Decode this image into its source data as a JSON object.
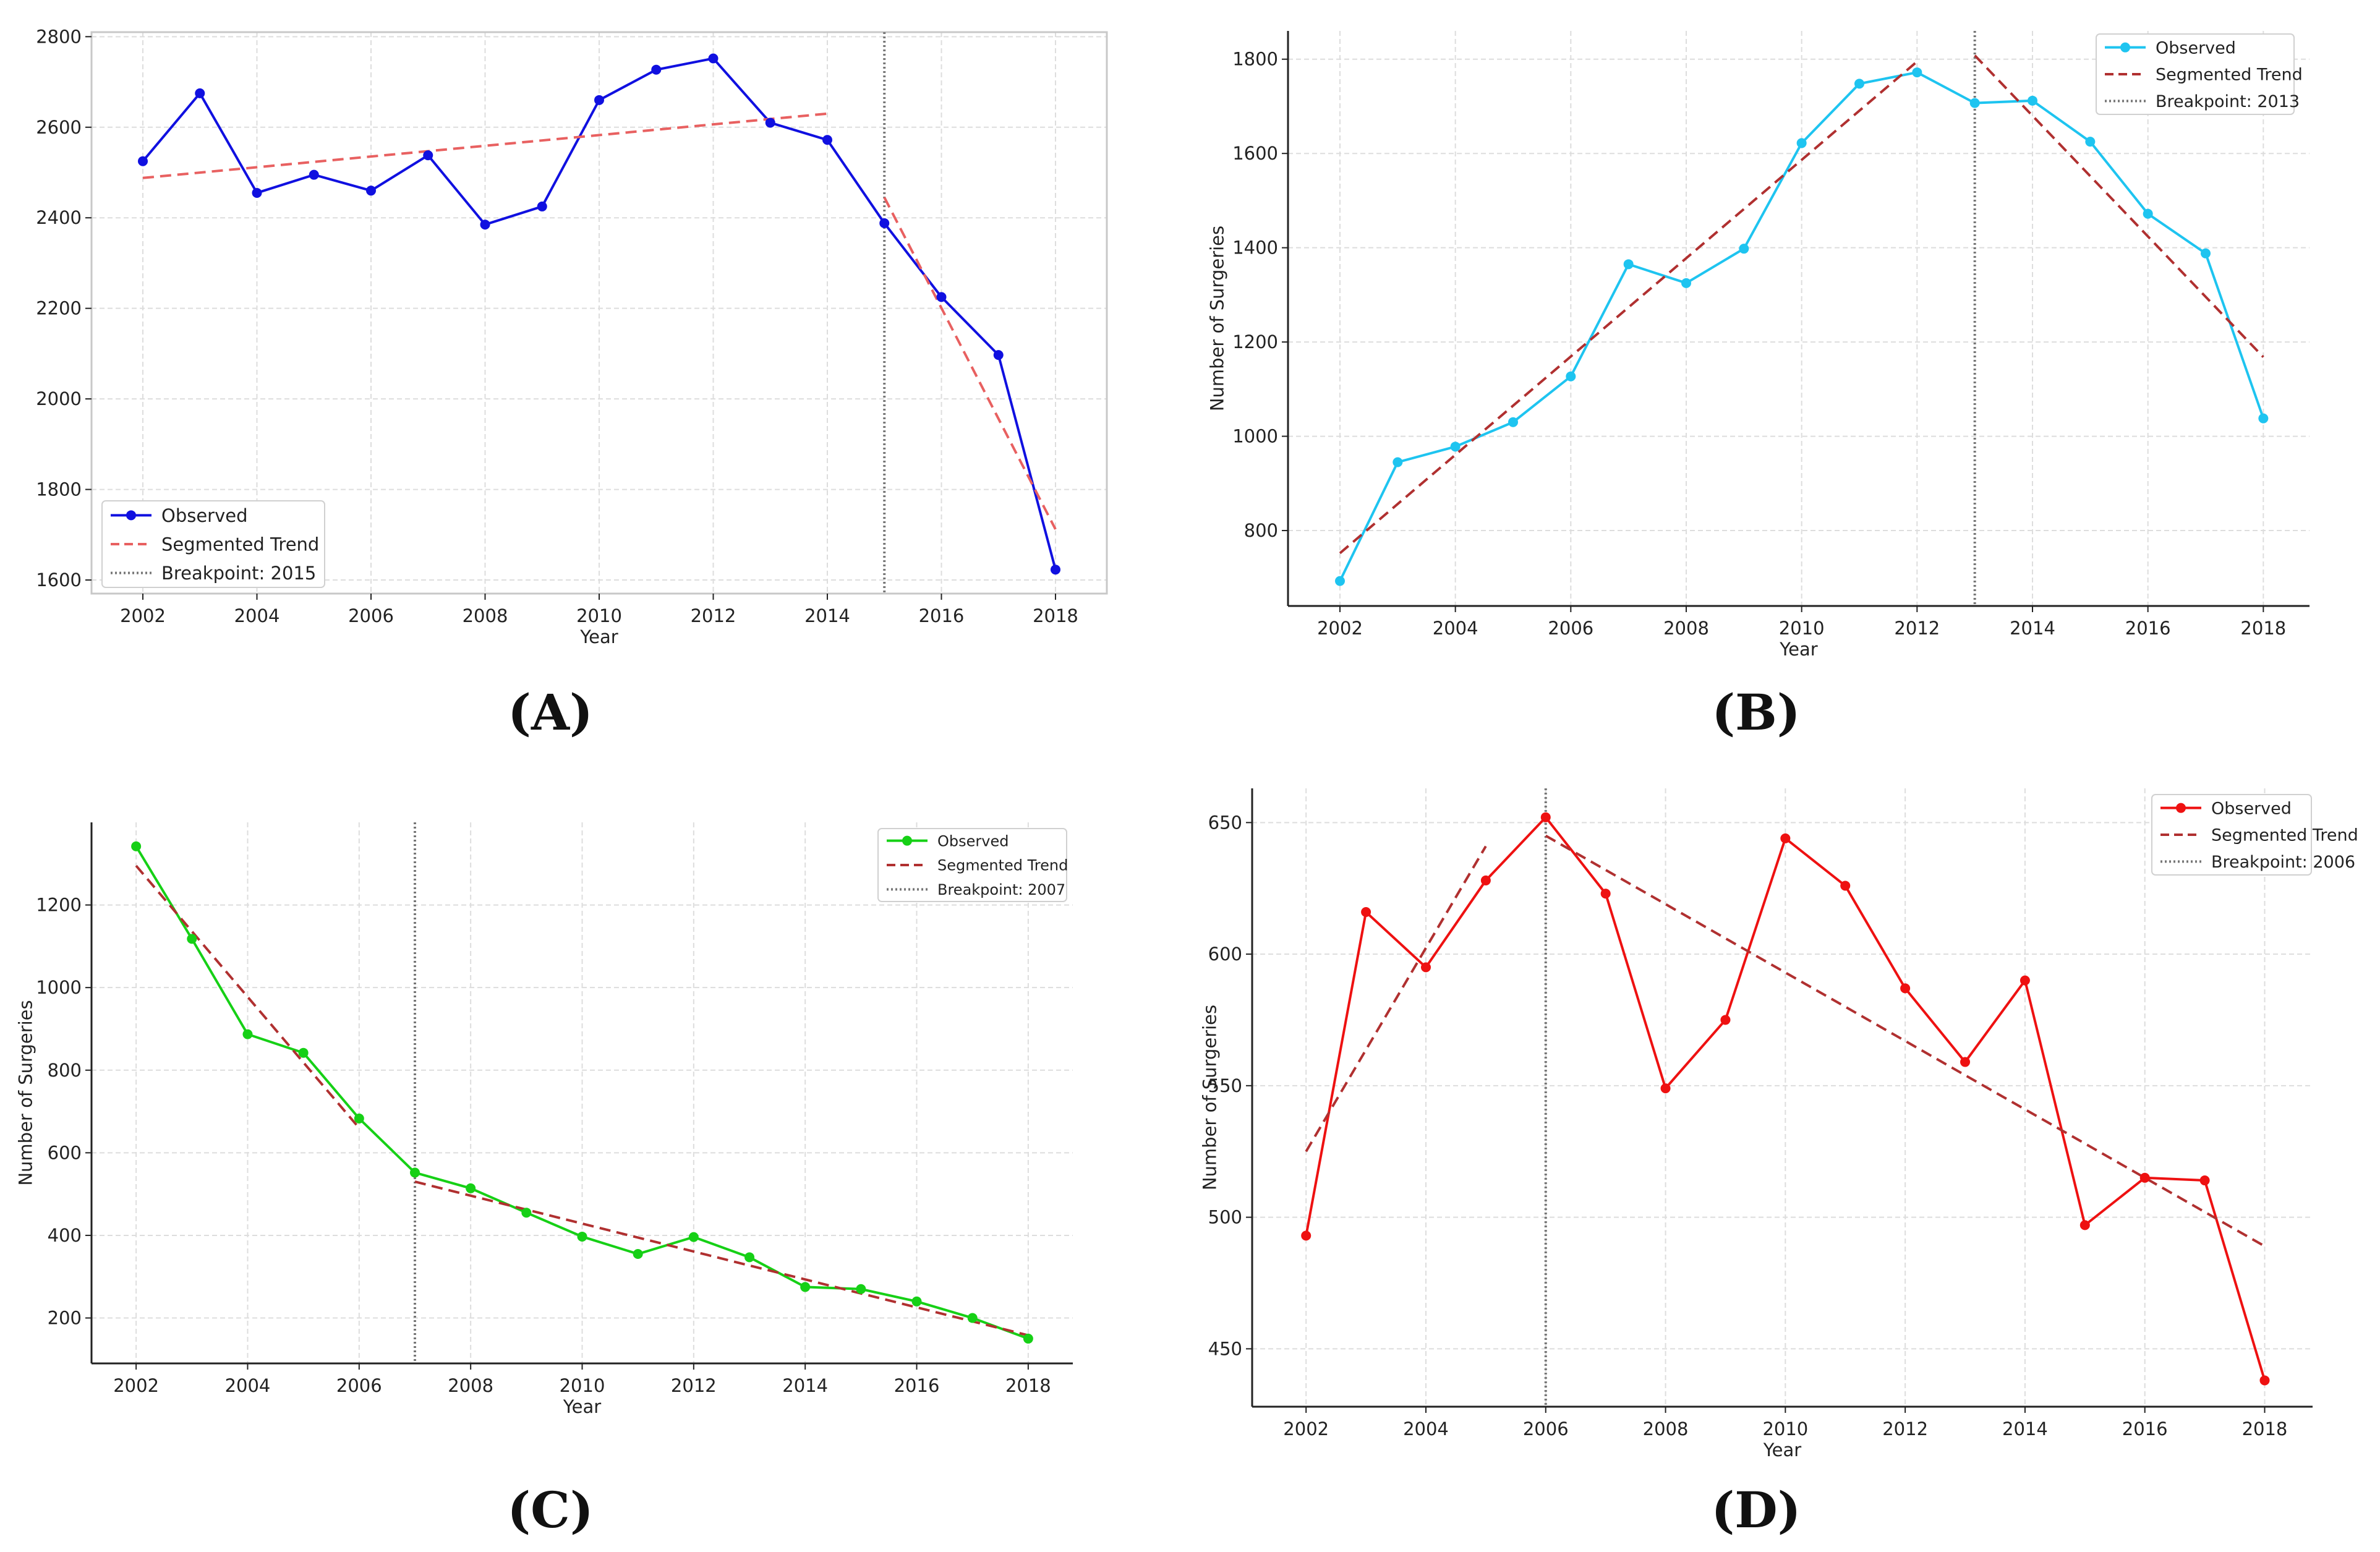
{
  "chart_data": [
    {
      "panel": "(A)",
      "type": "line",
      "color": "#1010e0",
      "trend_color": "#e86060",
      "xlabel": "Year",
      "ylabel": "",
      "xlim": [
        2001.1,
        2018.9
      ],
      "ylim": [
        1570,
        2810
      ],
      "xticks": [
        2002,
        2004,
        2006,
        2008,
        2010,
        2012,
        2014,
        2016,
        2018
      ],
      "yticks": [
        1600,
        1800,
        2000,
        2200,
        2400,
        2600,
        2800
      ],
      "x": [
        2002,
        2003,
        2004,
        2005,
        2006,
        2007,
        2008,
        2009,
        2010,
        2011,
        2012,
        2013,
        2014,
        2015,
        2016,
        2017,
        2018
      ],
      "values": [
        2525,
        2675,
        2455,
        2495,
        2460,
        2538,
        2385,
        2425,
        2660,
        2727,
        2752,
        2610,
        2572,
        2388,
        2225,
        2097,
        1623
      ],
      "trend_segments": [
        {
          "x": [
            2002,
            2014
          ],
          "y": [
            2488,
            2630
          ]
        },
        {
          "x": [
            2015,
            2018
          ],
          "y": [
            2445,
            1712
          ]
        }
      ],
      "breakpoint": 2015,
      "legend": [
        "Observed",
        "Segmented Trend",
        "Breakpoint: 2015"
      ],
      "legend_position": "bottom-left"
    },
    {
      "panel": "(B)",
      "type": "line",
      "color": "#1ec4f0",
      "trend_color": "#b03030",
      "xlabel": "Year",
      "ylabel": "Number of Surgeries",
      "xlim": [
        2001.1,
        2018.8
      ],
      "ylim": [
        640,
        1860
      ],
      "xticks": [
        2002,
        2004,
        2006,
        2008,
        2010,
        2012,
        2014,
        2016,
        2018
      ],
      "yticks": [
        800,
        1000,
        1200,
        1400,
        1600,
        1800
      ],
      "x": [
        2002,
        2003,
        2004,
        2005,
        2006,
        2007,
        2008,
        2009,
        2010,
        2011,
        2012,
        2013,
        2014,
        2015,
        2016,
        2017,
        2018
      ],
      "values": [
        693,
        945,
        978,
        1030,
        1127,
        1365,
        1325,
        1398,
        1622,
        1748,
        1772,
        1707,
        1712,
        1625,
        1472,
        1388,
        1038
      ],
      "trend_segments": [
        {
          "x": [
            2002,
            2012
          ],
          "y": [
            752,
            1795
          ]
        },
        {
          "x": [
            2013,
            2018
          ],
          "y": [
            1808,
            1168
          ]
        }
      ],
      "breakpoint": 2013,
      "legend": [
        "Observed",
        "Segmented Trend",
        "Breakpoint: 2013"
      ],
      "legend_position": "top-right"
    },
    {
      "panel": "(C)",
      "type": "line",
      "color": "#16d016",
      "trend_color": "#b03030",
      "xlabel": "Year",
      "ylabel": "Number of Surgeries",
      "xlim": [
        2001.2,
        2018.8
      ],
      "ylim": [
        90,
        1400
      ],
      "xticks": [
        2002,
        2004,
        2006,
        2008,
        2010,
        2012,
        2014,
        2016,
        2018
      ],
      "yticks": [
        200,
        400,
        600,
        800,
        1000,
        1200
      ],
      "x": [
        2002,
        2003,
        2004,
        2005,
        2006,
        2007,
        2008,
        2009,
        2010,
        2011,
        2012,
        2013,
        2014,
        2015,
        2016,
        2017,
        2018
      ],
      "values": [
        1342,
        1118,
        887,
        842,
        683,
        552,
        514,
        455,
        397,
        355,
        396,
        347,
        275,
        270,
        240,
        200,
        150
      ],
      "trend_segments": [
        {
          "x": [
            2002,
            2006
          ],
          "y": [
            1295,
            660
          ]
        },
        {
          "x": [
            2007,
            2018
          ],
          "y": [
            530,
            158
          ]
        }
      ],
      "breakpoint": 2007,
      "legend": [
        "Observed",
        "Segmented Trend",
        "Breakpoint: 2007"
      ],
      "legend_position": "top-right"
    },
    {
      "panel": "(D)",
      "type": "line",
      "color": "#ee1111",
      "trend_color": "#b03030",
      "xlabel": "Year",
      "ylabel": "Number of Surgeries",
      "xlim": [
        2001.1,
        2018.8
      ],
      "ylim": [
        428,
        663
      ],
      "xticks": [
        2002,
        2004,
        2006,
        2008,
        2010,
        2012,
        2014,
        2016,
        2018
      ],
      "yticks": [
        450,
        500,
        550,
        600,
        650
      ],
      "x": [
        2002,
        2003,
        2004,
        2005,
        2006,
        2007,
        2008,
        2009,
        2010,
        2011,
        2012,
        2013,
        2014,
        2015,
        2016,
        2017,
        2018
      ],
      "values": [
        493,
        616,
        595,
        628,
        652,
        623,
        549,
        575,
        644,
        626,
        587,
        559,
        590,
        497,
        515,
        514,
        438
      ],
      "trend_segments": [
        {
          "x": [
            2002,
            2005
          ],
          "y": [
            525,
            641
          ]
        },
        {
          "x": [
            2006,
            2018
          ],
          "y": [
            645,
            489
          ]
        }
      ],
      "breakpoint": 2006,
      "legend": [
        "Observed",
        "Segmented Trend",
        "Breakpoint: 2006"
      ],
      "legend_position": "top-right"
    }
  ]
}
